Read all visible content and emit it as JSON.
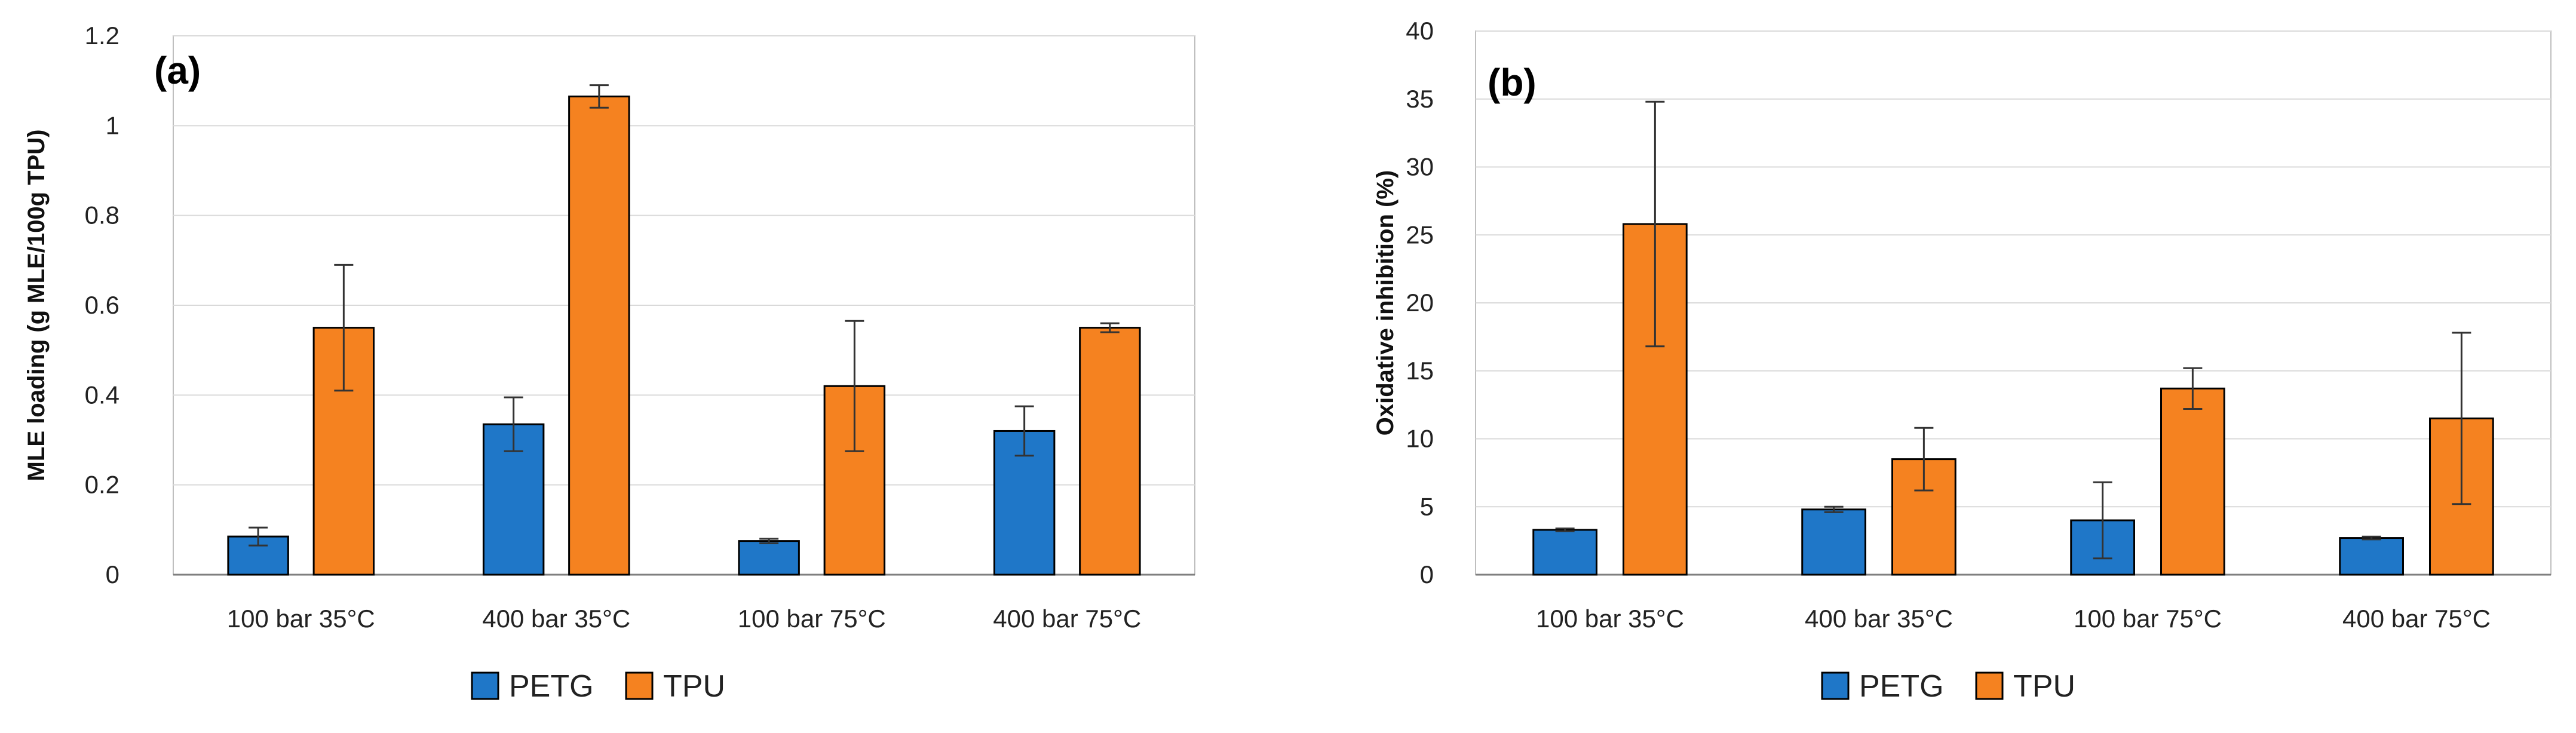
{
  "chart_data": [
    {
      "type": "bar",
      "panel_label": "(a)",
      "title": "",
      "xlabel": "",
      "ylabel": "MLE loading (g MLE/100g TPU)",
      "ylim": [
        0,
        1.2
      ],
      "yticks": [
        "0",
        "0.2",
        "0.4",
        "0.6",
        "0.8",
        "1",
        "1.2"
      ],
      "ytick_values": [
        0,
        0.2,
        0.4,
        0.6,
        0.8,
        1.0,
        1.2
      ],
      "grid": true,
      "legend_position": "bottom",
      "categories": [
        "100 bar 35°C",
        "400 bar 35°C",
        "100 bar 75°C",
        "400 bar 75°C"
      ],
      "series": [
        {
          "name": "PETG",
          "color": "#1f77c8",
          "values": [
            0.085,
            0.335,
            0.075,
            0.32
          ],
          "errors": [
            0.02,
            0.06,
            0.005,
            0.055
          ]
        },
        {
          "name": "TPU",
          "color": "#f58220",
          "values": [
            0.55,
            1.065,
            0.42,
            0.55
          ],
          "errors": [
            0.14,
            0.025,
            0.145,
            0.01
          ]
        }
      ]
    },
    {
      "type": "bar",
      "panel_label": "(b)",
      "title": "",
      "xlabel": "",
      "ylabel": "Oxidative inhibition (%)",
      "ylim": [
        0,
        40
      ],
      "yticks": [
        "0",
        "5",
        "10",
        "15",
        "20",
        "25",
        "30",
        "35",
        "40"
      ],
      "ytick_values": [
        0,
        5,
        10,
        15,
        20,
        25,
        30,
        35,
        40
      ],
      "grid": true,
      "legend_position": "bottom",
      "categories": [
        "100 bar 35°C",
        "400 bar 35°C",
        "100 bar 75°C",
        "400 bar 75°C"
      ],
      "series": [
        {
          "name": "PETG",
          "color": "#1f77c8",
          "values": [
            3.3,
            4.8,
            4.0,
            2.7
          ],
          "errors": [
            0.1,
            0.2,
            2.8,
            0.1
          ]
        },
        {
          "name": "TPU",
          "color": "#f58220",
          "values": [
            25.8,
            8.5,
            13.7,
            11.5
          ],
          "errors": [
            9.0,
            2.3,
            1.5,
            6.3
          ]
        }
      ]
    }
  ]
}
